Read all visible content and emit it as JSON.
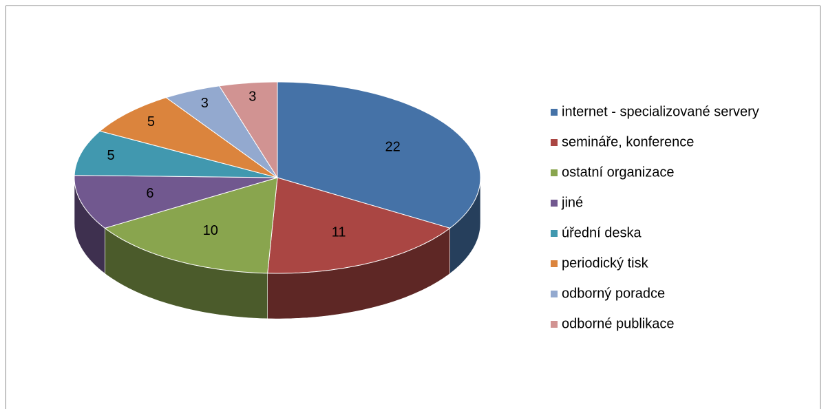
{
  "chart_data": {
    "type": "pie",
    "categories": [
      "internet - specializované servery",
      "semináře, konference",
      "ostatní organizace",
      "jiné",
      "úřední deska",
      "periodický tisk",
      "odborný poradce",
      "odborné publikace"
    ],
    "values": [
      22,
      11,
      10,
      6,
      5,
      5,
      3,
      3
    ],
    "colors": [
      "#4572a7",
      "#aa4643",
      "#89a54e",
      "#71588f",
      "#4198af",
      "#db843d",
      "#93a9cf",
      "#d19392"
    ],
    "legend": "right"
  }
}
